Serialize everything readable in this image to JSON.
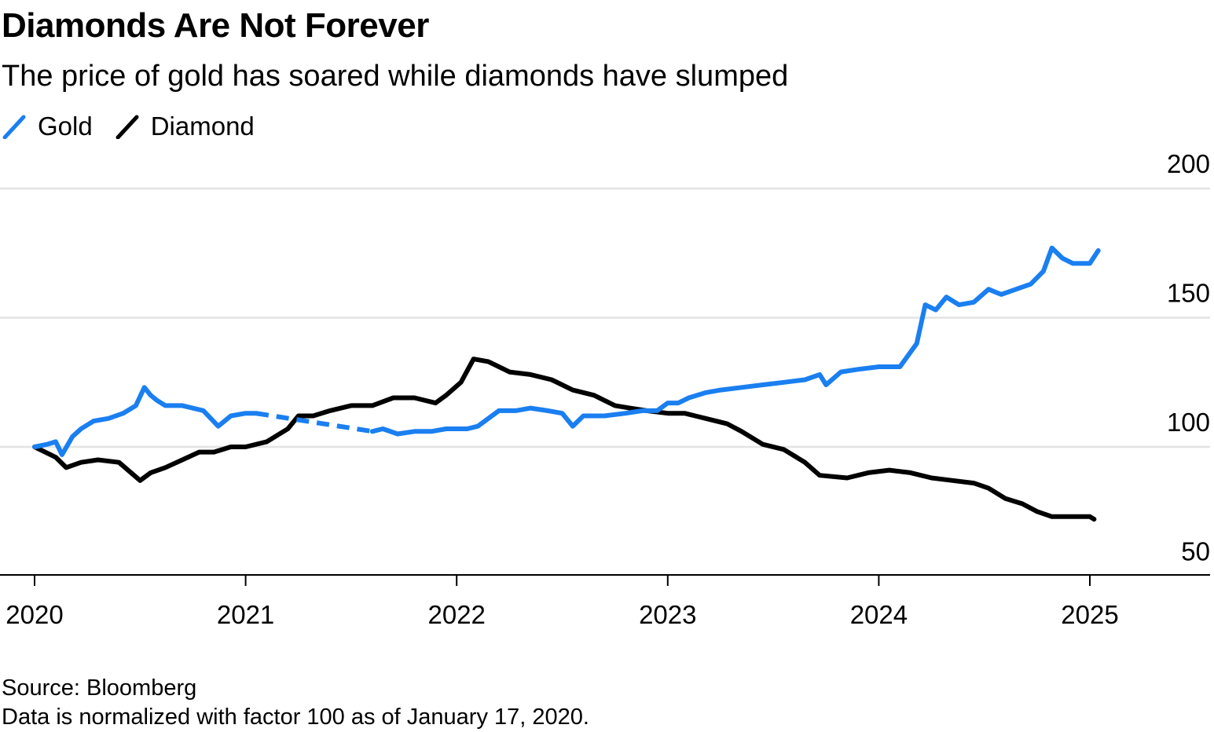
{
  "header": {
    "title": "Diamonds Are Not Forever",
    "subtitle": "The price of gold has soared while diamonds have slumped"
  },
  "legend": [
    {
      "label": "Gold",
      "color": "#1a7ff0"
    },
    {
      "label": "Diamond",
      "color": "#000000"
    }
  ],
  "footer": {
    "source": "Source: Bloomberg",
    "note": "Data is normalized with factor 100 as of January 17, 2020."
  },
  "chart_data": {
    "type": "line",
    "title": "Diamonds Are Not Forever",
    "subtitle": "The price of gold has soared while diamonds have slumped",
    "xlabel": "",
    "ylabel": "",
    "ylim": [
      45,
      205
    ],
    "xlim": [
      2020,
      2025.6
    ],
    "y_ticks": [
      50,
      100,
      150,
      200
    ],
    "x_ticks": [
      "2020",
      "2021",
      "2022",
      "2023",
      "2024",
      "2025"
    ],
    "grid": true,
    "legend_position": "top-left",
    "series": [
      {
        "name": "Gold",
        "color": "#1a7ff0",
        "x": [
          2020.0,
          2020.06,
          2020.1,
          2020.13,
          2020.18,
          2020.22,
          2020.28,
          2020.35,
          2020.42,
          2020.48,
          2020.52,
          2020.55,
          2020.58,
          2020.62,
          2020.7,
          2020.8,
          2020.87,
          2020.93,
          2021.0,
          2021.05
        ],
        "y": [
          100,
          101,
          102,
          97,
          104,
          107,
          110,
          111,
          113,
          116,
          123,
          120,
          118,
          116,
          116,
          114,
          108,
          112,
          113,
          113
        ],
        "gap_x": [
          2021.05,
          2021.6
        ],
        "x2": [
          2021.6,
          2021.65,
          2021.72,
          2021.8,
          2021.88,
          2021.95,
          2022.05,
          2022.1,
          2022.15,
          2022.2,
          2022.28,
          2022.35,
          2022.43,
          2022.5,
          2022.55,
          2022.6,
          2022.7,
          2022.8,
          2022.88,
          2022.95,
          2023.0,
          2023.05,
          2023.1,
          2023.18,
          2023.25,
          2023.35,
          2023.45,
          2023.55,
          2023.65,
          2023.72,
          2023.75,
          2023.82,
          2023.9,
          2024.0,
          2024.1,
          2024.18,
          2024.22,
          2024.27,
          2024.32,
          2024.38,
          2024.45,
          2024.52,
          2024.58,
          2024.65,
          2024.72,
          2024.78,
          2024.82,
          2024.87,
          2024.92,
          2025.0,
          2025.04
        ],
        "y2": [
          106,
          107,
          105,
          106,
          106,
          107,
          107,
          108,
          111,
          114,
          114,
          115,
          114,
          113,
          108,
          112,
          112,
          113,
          114,
          114,
          117,
          117,
          119,
          121,
          122,
          123,
          124,
          125,
          126,
          128,
          124,
          129,
          130,
          131,
          131,
          140,
          155,
          153,
          158,
          155,
          156,
          161,
          159,
          161,
          163,
          168,
          177,
          173,
          171,
          171,
          176
        ]
      },
      {
        "name": "Diamond",
        "color": "#000000",
        "x": [
          2020.0,
          2020.05,
          2020.1,
          2020.15,
          2020.22,
          2020.3,
          2020.4,
          2020.5,
          2020.55,
          2020.62,
          2020.7,
          2020.78,
          2020.85,
          2020.93,
          2021.0,
          2021.1,
          2021.2,
          2021.25,
          2021.32,
          2021.4,
          2021.5,
          2021.6,
          2021.7,
          2021.8,
          2021.9,
          2021.95,
          2022.02,
          2022.08,
          2022.15,
          2022.25,
          2022.35,
          2022.45,
          2022.55,
          2022.65,
          2022.75,
          2022.82,
          2022.9,
          2023.0,
          2023.08,
          2023.18,
          2023.28,
          2023.35,
          2023.45,
          2023.55,
          2023.65,
          2023.72,
          2023.85,
          2023.95,
          2024.05,
          2024.15,
          2024.25,
          2024.35,
          2024.45,
          2024.52,
          2024.6,
          2024.68,
          2024.75,
          2024.82,
          2024.9,
          2025.0,
          2025.02
        ],
        "y": [
          100,
          98,
          96,
          92,
          94,
          95,
          94,
          87,
          90,
          92,
          95,
          98,
          98,
          100,
          100,
          102,
          107,
          112,
          112,
          114,
          116,
          116,
          119,
          119,
          117,
          120,
          125,
          134,
          133,
          129,
          128,
          126,
          122,
          120,
          116,
          115,
          114,
          113,
          113,
          111,
          109,
          106,
          101,
          99,
          94,
          89,
          88,
          90,
          91,
          90,
          88,
          87,
          86,
          84,
          80,
          78,
          75,
          73,
          73,
          73,
          72
        ]
      }
    ]
  }
}
